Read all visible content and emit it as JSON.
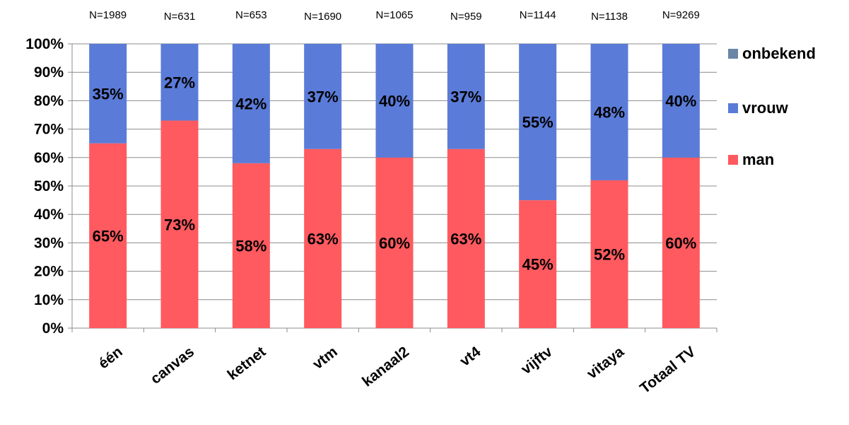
{
  "chart_data": {
    "type": "bar",
    "stacked": true,
    "percent_stacked": true,
    "categories": [
      "één",
      "canvas",
      "ketnet",
      "vtm",
      "kanaal2",
      "vt4",
      "vijftv",
      "vitaya",
      "Totaal TV"
    ],
    "n_labels": [
      "N=1989",
      "N=631",
      "N=653",
      "N=1690",
      "N=1065",
      "N=959",
      "N=1144",
      "N=1138",
      "N=9269"
    ],
    "series": [
      {
        "name": "man",
        "color": "#ff5a5f",
        "values": [
          65,
          73,
          58,
          63,
          60,
          63,
          45,
          52,
          60
        ],
        "labels": [
          "65%",
          "73%",
          "58%",
          "63%",
          "60%",
          "63%",
          "45%",
          "52%",
          "60%"
        ]
      },
      {
        "name": "vrouw",
        "color": "#5b7bd8",
        "values": [
          35,
          27,
          42,
          37,
          40,
          37,
          55,
          48,
          40
        ],
        "labels": [
          "35%",
          "27%",
          "42%",
          "37%",
          "40%",
          "37%",
          "55%",
          "48%",
          "40%"
        ]
      },
      {
        "name": "onbekend",
        "color": "#6a86a6",
        "values": [
          0,
          0,
          0,
          0,
          0,
          0,
          0,
          0,
          0
        ],
        "labels": []
      }
    ],
    "legend_order": [
      "onbekend",
      "vrouw",
      "man"
    ],
    "y_ticks": [
      "0%",
      "10%",
      "20%",
      "30%",
      "40%",
      "50%",
      "60%",
      "70%",
      "80%",
      "90%",
      "100%"
    ],
    "ylim": [
      0,
      100
    ],
    "grid": true,
    "legend": "right",
    "title": "",
    "xlabel": "",
    "ylabel": ""
  }
}
